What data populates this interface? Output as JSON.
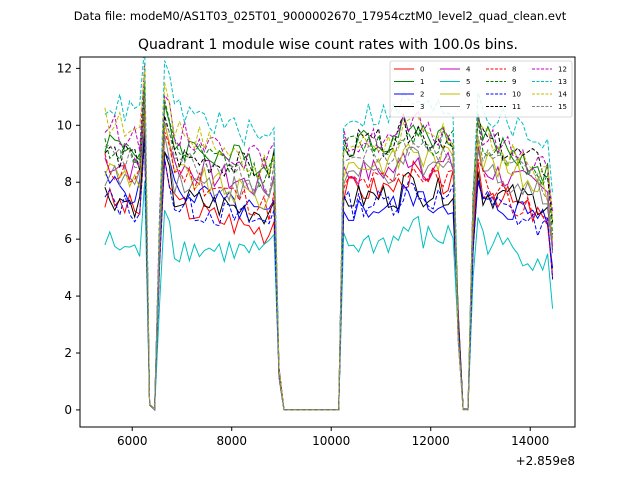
{
  "suptitle": "Data file: modeM0/AS1T03_025T01_9000002670_17954cztM0_level2_quad_clean.evt",
  "chart_data": {
    "type": "line",
    "title": "Quadrant 1 module wise count rates with 100.0s bins.",
    "xlabel": "",
    "ylabel": "",
    "x_offset_label": "+2.859e8",
    "xlim": [
      4950,
      14900
    ],
    "ylim": [
      -0.6,
      12.4
    ],
    "xticks": [
      6000,
      8000,
      10000,
      12000,
      14000
    ],
    "yticks": [
      0,
      2,
      4,
      6,
      8,
      10,
      12
    ],
    "grid": false,
    "legend_placement": "top-right",
    "legend_columns": 4,
    "segments": [
      {
        "x_start": 5450,
        "x_end": 6250
      },
      {
        "x_start": 6350,
        "x_end": 6450,
        "gap_value": 0.05
      },
      {
        "x_start": 6550,
        "x_end": 8850
      },
      {
        "x_start": 8950,
        "x_end": 8950,
        "transition": 1.3
      },
      {
        "x_start": 9050,
        "x_end": 10150,
        "gap_value": 0.0
      },
      {
        "x_start": 10250,
        "x_end": 12450
      },
      {
        "x_start": 12550,
        "x_end": 12550,
        "transition": 3.0
      },
      {
        "x_start": 12650,
        "x_end": 12750,
        "gap_value": 0.0
      },
      {
        "x_start": 12850,
        "x_end": 14450
      }
    ],
    "series": [
      {
        "name": "0",
        "color": "#ff0000",
        "dashed": false,
        "base1": 7.4,
        "base2": 6.2,
        "base3": 7.9,
        "base4": 6.6
      },
      {
        "name": "1",
        "color": "#008000",
        "dashed": false,
        "base1": 9.5,
        "base2": 8.6,
        "base3": 9.6,
        "base4": 8.3
      },
      {
        "name": "2",
        "color": "#0000ff",
        "dashed": false,
        "base1": 8.0,
        "base2": 6.7,
        "base3": 7.2,
        "base4": 6.9
      },
      {
        "name": "3",
        "color": "#000000",
        "dashed": false,
        "base1": 7.6,
        "base2": 6.9,
        "base3": 7.6,
        "base4": 7.3
      },
      {
        "name": "4",
        "color": "#bf00bf",
        "dashed": false,
        "base1": 8.8,
        "base2": 7.7,
        "base3": 8.5,
        "base4": 7.6
      },
      {
        "name": "5",
        "color": "#00bfbf",
        "dashed": false,
        "base1": 5.9,
        "base2": 5.5,
        "base3": 6.0,
        "base4": 5.2
      },
      {
        "name": "6",
        "color": "#bfbf00",
        "dashed": false,
        "base1": 8.5,
        "base2": 7.3,
        "base3": 8.8,
        "base4": 7.8
      },
      {
        "name": "7",
        "color": "#808080",
        "dashed": false,
        "base1": 8.3,
        "base2": 7.6,
        "base3": 8.4,
        "base4": 7.5
      },
      {
        "name": "8",
        "color": "#ff0000",
        "dashed": true,
        "base1": 8.6,
        "base2": 7.0,
        "base3": 8.1,
        "base4": 6.5
      },
      {
        "name": "9",
        "color": "#008000",
        "dashed": true,
        "base1": 9.3,
        "base2": 8.2,
        "base3": 9.4,
        "base4": 8.1
      },
      {
        "name": "10",
        "color": "#0000ff",
        "dashed": true,
        "base1": 7.4,
        "base2": 6.5,
        "base3": 7.4,
        "base4": 6.3
      },
      {
        "name": "11",
        "color": "#000000",
        "dashed": true,
        "base1": 9.1,
        "base2": 8.4,
        "base3": 9.5,
        "base4": 8.5
      },
      {
        "name": "12",
        "color": "#bf00bf",
        "dashed": true,
        "base1": 10.0,
        "base2": 8.6,
        "base3": 9.6,
        "base4": 8.6
      },
      {
        "name": "13",
        "color": "#00bfbf",
        "dashed": true,
        "base1": 10.8,
        "base2": 9.4,
        "base3": 10.5,
        "base4": 9.4
      },
      {
        "name": "14",
        "color": "#bfbf00",
        "dashed": true,
        "base1": 10.2,
        "base2": 8.3,
        "base3": 9.5,
        "base4": 8.2
      },
      {
        "name": "15",
        "color": "#808080",
        "dashed": true,
        "base1": 9.0,
        "base2": 7.9,
        "base3": 9.0,
        "base4": 7.8
      }
    ]
  }
}
